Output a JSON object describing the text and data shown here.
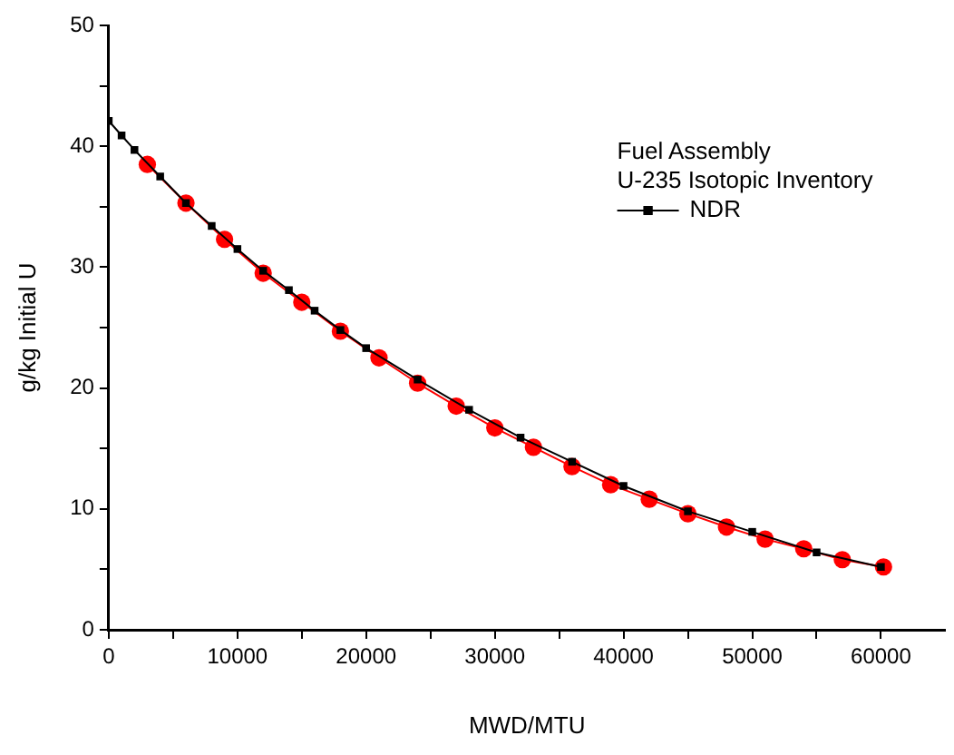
{
  "chart_data": {
    "type": "line",
    "xlabel": "MWD/MTU",
    "ylabel": "g/kg Initial U",
    "legend_title": "Fuel Assembly\nU-235 Isotopic Inventory",
    "legend": "top right",
    "grid": false,
    "line_style": "solid",
    "xlim": [
      0,
      65000
    ],
    "xticks": [
      0,
      {
        "value": 5000,
        "label": null
      },
      10000,
      {
        "value": 15000,
        "label": null
      },
      20000,
      {
        "value": 25000,
        "label": null
      },
      30000,
      {
        "value": 35000,
        "label": null
      },
      40000,
      {
        "value": 45000,
        "label": null
      },
      50000,
      {
        "value": 55000,
        "label": null
      },
      60000
    ],
    "ylim": [
      0,
      50
    ],
    "yticks": [
      0,
      {
        "value": 5,
        "label": null
      },
      10,
      {
        "value": 15,
        "label": null
      },
      20,
      {
        "value": 25,
        "label": null
      },
      30,
      {
        "value": 35,
        "label": null
      },
      40,
      {
        "value": 45,
        "label": null
      },
      50
    ],
    "series": [
      {
        "name": "NDR",
        "color": "#000000",
        "marker": "square",
        "x": [
          0,
          1000,
          2000,
          4000,
          6000,
          8000,
          10000,
          12000,
          14000,
          16000,
          18000,
          20000,
          24000,
          28000,
          32000,
          36000,
          40000,
          45000,
          50000,
          55000,
          60000
        ],
        "values": [
          42.1,
          40.9,
          39.7,
          37.5,
          35.3,
          33.4,
          31.5,
          29.7,
          28.1,
          26.4,
          24.8,
          23.3,
          20.7,
          18.2,
          15.9,
          13.9,
          11.9,
          9.8,
          8.1,
          6.4,
          5.2
        ]
      },
      {
        "color": "#ff0000",
        "marker": "circle",
        "x": [
          3000,
          6000,
          9000,
          12000,
          15000,
          18000,
          21000,
          24000,
          27000,
          30000,
          33000,
          36000,
          39000,
          42000,
          45000,
          48000,
          51000,
          54000,
          57000,
          60200
        ],
        "values": [
          38.5,
          35.3,
          32.3,
          29.5,
          27.1,
          24.7,
          22.5,
          20.4,
          18.5,
          16.7,
          15.1,
          13.5,
          12.0,
          10.8,
          9.6,
          8.5,
          7.5,
          6.7,
          5.8,
          5.2
        ]
      }
    ]
  }
}
